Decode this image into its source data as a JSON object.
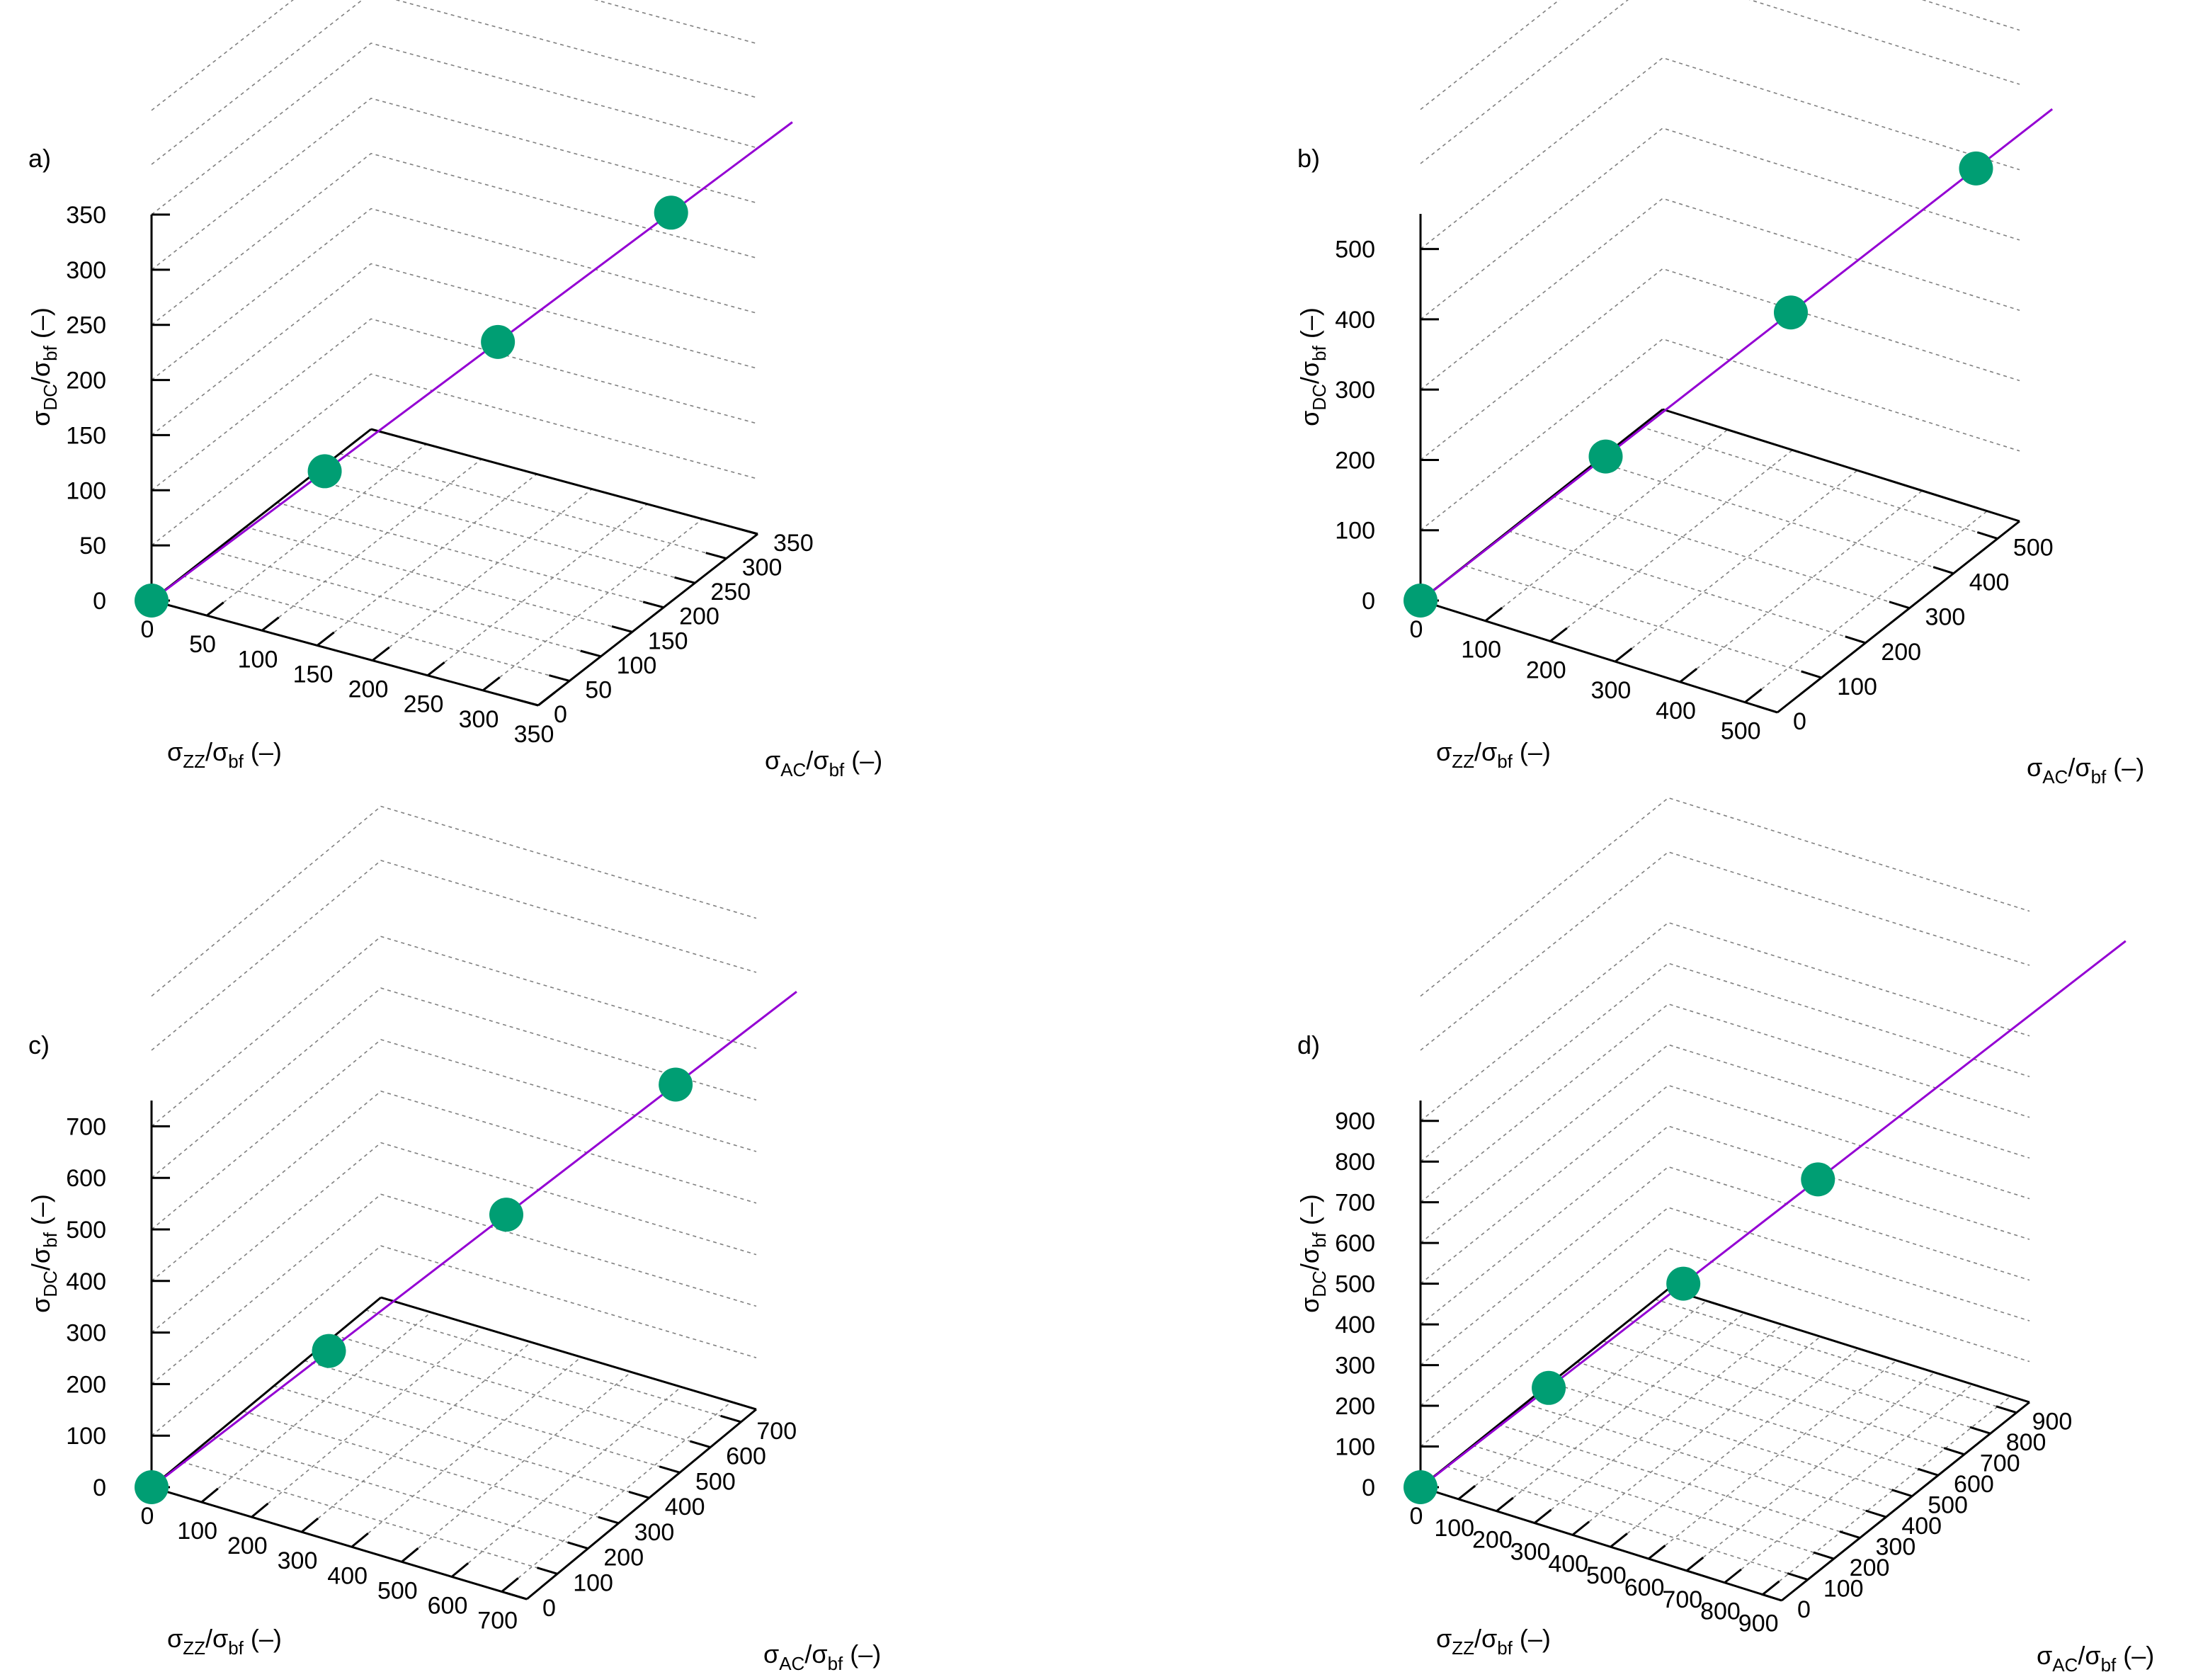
{
  "colors": {
    "line": "#9400d3",
    "point": "#009e73",
    "axis": "#000000",
    "grid": "#808080"
  },
  "axis_labels": {
    "sigma": "σ",
    "z_sub": "DC",
    "x_sub": "ZZ",
    "y_sub": "AC",
    "den_sub": "bf",
    "unit": " (–)"
  },
  "chart_data": [
    {
      "type": "scatter",
      "panel_label": "a)",
      "xlabel": "σZZ/σbf (–)",
      "ylabel": "σAC/σbf (–)",
      "zlabel": "σDC/σbf (–)",
      "xlim": [
        0,
        350
      ],
      "ylim": [
        0,
        350
      ],
      "zlim": [
        0,
        350
      ],
      "x_ticks": [
        "0",
        "50",
        "100",
        "150",
        "200",
        "250",
        "300",
        "350"
      ],
      "y_ticks": [
        "0",
        "50",
        "100",
        "150",
        "200",
        "250",
        "300",
        "350"
      ],
      "z_ticks": [
        "0",
        "50",
        "100",
        "150",
        "200",
        "250",
        "300",
        "350"
      ],
      "grid": true,
      "points": [
        {
          "x": 0,
          "y": 0,
          "z": 0
        },
        {
          "x": 100,
          "y": 100,
          "z": 100
        },
        {
          "x": 200,
          "y": 200,
          "z": 200
        },
        {
          "x": 300,
          "y": 300,
          "z": 300
        }
      ],
      "line": {
        "from": 0,
        "to": 370
      }
    },
    {
      "type": "scatter",
      "panel_label": "b)",
      "xlabel": "σZZ/σbf (–)",
      "ylabel": "σAC/σbf (–)",
      "zlabel": "σDC/σbf (–)",
      "xlim": [
        0,
        550
      ],
      "ylim": [
        0,
        550
      ],
      "zlim": [
        0,
        550
      ],
      "x_ticks": [
        "0",
        "100",
        "200",
        "300",
        "400",
        "500"
      ],
      "y_ticks": [
        "0",
        "100",
        "200",
        "300",
        "400",
        "500"
      ],
      "z_ticks": [
        "0",
        "100",
        "200",
        "300",
        "400",
        "500"
      ],
      "grid": true,
      "points": [
        {
          "x": 0,
          "y": 0,
          "z": 0
        },
        {
          "x": 170,
          "y": 170,
          "z": 170
        },
        {
          "x": 340,
          "y": 340,
          "z": 340
        },
        {
          "x": 510,
          "y": 510,
          "z": 510
        }
      ],
      "line": {
        "from": 0,
        "to": 580
      }
    },
    {
      "type": "scatter",
      "panel_label": "c)",
      "xlabel": "σZZ/σbf (–)",
      "ylabel": "σAC/σbf (–)",
      "zlabel": "σDC/σbf (–)",
      "xlim": [
        0,
        750
      ],
      "ylim": [
        0,
        750
      ],
      "zlim": [
        0,
        750
      ],
      "x_ticks": [
        "0",
        "100",
        "200",
        "300",
        "400",
        "500",
        "600",
        "700"
      ],
      "y_ticks": [
        "0",
        "100",
        "200",
        "300",
        "400",
        "500",
        "600",
        "700"
      ],
      "z_ticks": [
        "0",
        "100",
        "200",
        "300",
        "400",
        "500",
        "600",
        "700"
      ],
      "grid": true,
      "points": [
        {
          "x": 0,
          "y": 0,
          "z": 0
        },
        {
          "x": 220,
          "y": 220,
          "z": 220
        },
        {
          "x": 440,
          "y": 440,
          "z": 440
        },
        {
          "x": 650,
          "y": 650,
          "z": 650
        }
      ],
      "line": {
        "from": 0,
        "to": 800
      }
    },
    {
      "type": "scatter",
      "panel_label": "d)",
      "xlabel": "σZZ/σbf (–)",
      "ylabel": "σAC/σbf (–)",
      "zlabel": "σDC/σbf (–)",
      "xlim": [
        0,
        950
      ],
      "ylim": [
        0,
        950
      ],
      "zlim": [
        0,
        950
      ],
      "x_ticks": [
        "0",
        "100",
        "200",
        "300",
        "400",
        "500",
        "600",
        "700",
        "800",
        "900"
      ],
      "y_ticks": [
        "0",
        "100",
        "200",
        "300",
        "400",
        "500",
        "600",
        "700",
        "800",
        "900"
      ],
      "z_ticks": [
        "0",
        "100",
        "200",
        "300",
        "400",
        "500",
        "600",
        "700",
        "800",
        "900"
      ],
      "grid": true,
      "points": [
        {
          "x": 0,
          "y": 0,
          "z": 0
        },
        {
          "x": 200,
          "y": 200,
          "z": 200
        },
        {
          "x": 410,
          "y": 410,
          "z": 410
        },
        {
          "x": 620,
          "y": 620,
          "z": 620
        }
      ],
      "line": {
        "from": 0,
        "to": 1100
      }
    }
  ]
}
